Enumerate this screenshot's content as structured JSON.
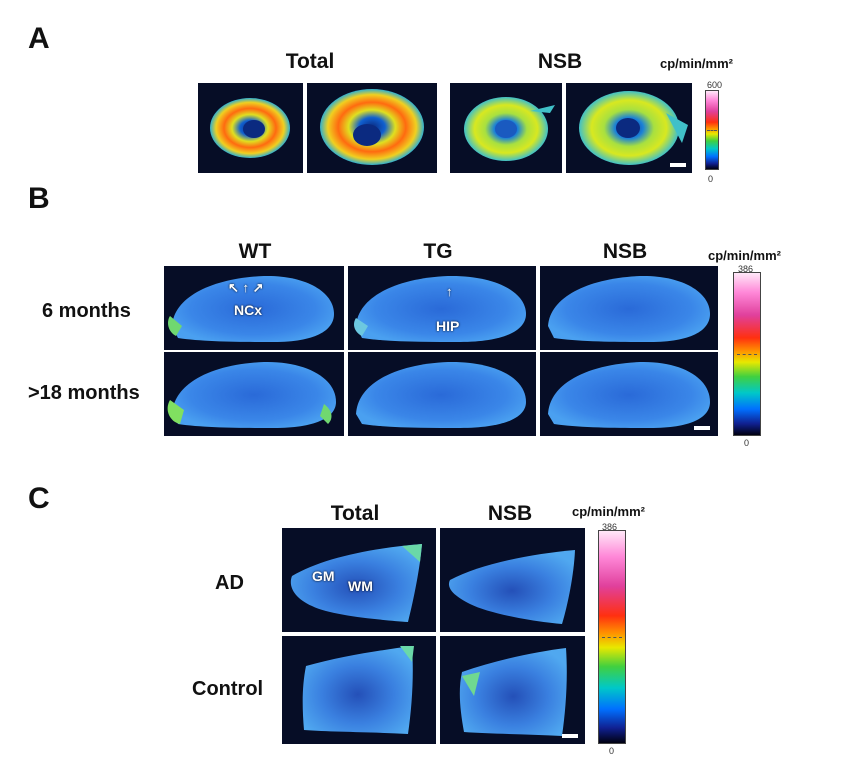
{
  "panel_a": {
    "letter": "A",
    "headers": [
      "Total",
      "NSB"
    ],
    "unit": "cp/min/mm²",
    "colorbar": {
      "max": "600",
      "min": "0"
    }
  },
  "panel_b": {
    "letter": "B",
    "headers": [
      "WT",
      "TG",
      "NSB"
    ],
    "rows": [
      "6 months",
      ">18 months"
    ],
    "unit": "cp/min/mm²",
    "colorbar": {
      "max": "386",
      "min": "0"
    },
    "annotations": {
      "ncx": "NCx",
      "hip": "HIP"
    }
  },
  "panel_c": {
    "letter": "C",
    "headers": [
      "Total",
      "NSB"
    ],
    "rows": [
      "AD",
      "Control"
    ],
    "unit": "cp/min/mm²",
    "colorbar": {
      "max": "386",
      "min": "0"
    },
    "annotations": {
      "gm": "GM",
      "wm": "WM"
    }
  }
}
